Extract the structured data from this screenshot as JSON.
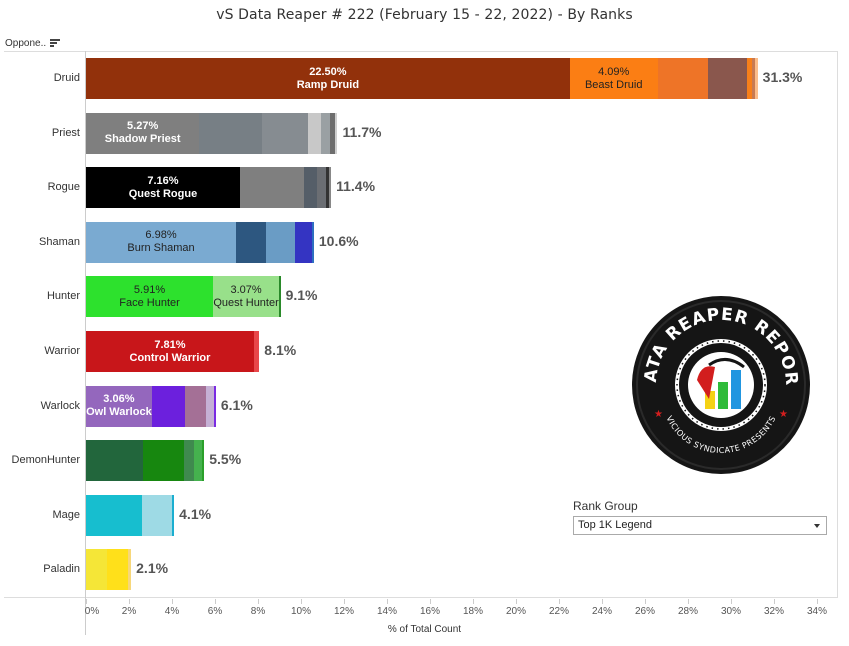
{
  "title": "vS Data Reaper #  222 (February 15 - 22, 2022) - By Ranks",
  "row_header": "Oppone..",
  "x_axis": {
    "label": "% of Total Count",
    "ticks": [
      "0%",
      "2%",
      "4%",
      "6%",
      "8%",
      "10%",
      "12%",
      "14%",
      "16%",
      "18%",
      "20%",
      "22%",
      "24%",
      "26%",
      "28%",
      "30%",
      "32%",
      "34%"
    ]
  },
  "filter": {
    "title": "Rank Group",
    "selected": "Top 1K Legend"
  },
  "logo": {
    "top_text": "DATA REAPER REPORT",
    "bottom_text": "VICIOUS SYNDICATE PRESENTS"
  },
  "rows": [
    {
      "label": "Druid",
      "total_label": "31.3%",
      "segments": [
        {
          "value": 22.5,
          "color": "#92310b",
          "text_color": "light",
          "label_pct": "22.50%",
          "label_name": "Ramp Druid"
        },
        {
          "value": 4.09,
          "color": "#fb7e14",
          "text_color": "dark",
          "label_pct": "4.09%",
          "label_name": "Beast Druid"
        },
        {
          "value": 2.33,
          "color": "#ee7427",
          "text_color": "dark",
          "label_pct": "",
          "label_name": ""
        },
        {
          "value": 1.81,
          "color": "#8a574d",
          "text_color": "light",
          "label_pct": "",
          "label_name": ""
        },
        {
          "value": 0.23,
          "color": "#f77f1a",
          "text_color": "dark",
          "label_pct": "",
          "label_name": ""
        },
        {
          "value": 0.14,
          "color": "#c87a52",
          "text_color": "dark",
          "label_pct": "",
          "label_name": ""
        },
        {
          "value": 0.14,
          "color": "#fbbc8a",
          "text_color": "dark",
          "label_pct": "",
          "label_name": ""
        }
      ]
    },
    {
      "label": "Priest",
      "total_label": "11.7%",
      "segments": [
        {
          "value": 5.27,
          "color": "#7f7f7f",
          "text_color": "light",
          "label_pct": "5.27%",
          "label_name": "Shadow Priest"
        },
        {
          "value": 2.93,
          "color": "#777f85",
          "text_color": "light",
          "label_pct": "",
          "label_name": ""
        },
        {
          "value": 2.14,
          "color": "#868c91",
          "text_color": "light",
          "label_pct": "",
          "label_name": ""
        },
        {
          "value": 0.6,
          "color": "#c8c8c8",
          "text_color": "dark",
          "label_pct": "",
          "label_name": ""
        },
        {
          "value": 0.42,
          "color": "#9aa0a3",
          "text_color": "dark",
          "label_pct": "",
          "label_name": ""
        },
        {
          "value": 0.23,
          "color": "#6e6e6e",
          "text_color": "light",
          "label_pct": "",
          "label_name": ""
        },
        {
          "value": 0.11,
          "color": "#cfcfcf",
          "text_color": "dark",
          "label_pct": "",
          "label_name": ""
        }
      ]
    },
    {
      "label": "Rogue",
      "total_label": "11.4%",
      "segments": [
        {
          "value": 7.16,
          "color": "#000000",
          "text_color": "light",
          "label_pct": "7.16%",
          "label_name": "Quest Rogue"
        },
        {
          "value": 2.98,
          "color": "#7f7f7f",
          "text_color": "light",
          "label_pct": "",
          "label_name": ""
        },
        {
          "value": 0.6,
          "color": "#555e68",
          "text_color": "light",
          "label_pct": "",
          "label_name": ""
        },
        {
          "value": 0.42,
          "color": "#6b6e73",
          "text_color": "light",
          "label_pct": "",
          "label_name": ""
        },
        {
          "value": 0.14,
          "color": "#333333",
          "text_color": "light",
          "label_pct": "",
          "label_name": ""
        },
        {
          "value": 0.1,
          "color": "#888888",
          "text_color": "light",
          "label_pct": "",
          "label_name": ""
        }
      ]
    },
    {
      "label": "Shaman",
      "total_label": "10.6%",
      "segments": [
        {
          "value": 6.98,
          "color": "#7aaad1",
          "text_color": "dark",
          "label_pct": "6.98%",
          "label_name": "Burn Shaman"
        },
        {
          "value": 1.4,
          "color": "#2d5780",
          "text_color": "light",
          "label_pct": "",
          "label_name": ""
        },
        {
          "value": 1.35,
          "color": "#6a9cc5",
          "text_color": "dark",
          "label_pct": "",
          "label_name": ""
        },
        {
          "value": 0.79,
          "color": "#3434c2",
          "text_color": "light",
          "label_pct": "",
          "label_name": ""
        },
        {
          "value": 0.08,
          "color": "#2d6fc0",
          "text_color": "light",
          "label_pct": "",
          "label_name": ""
        }
      ]
    },
    {
      "label": "Hunter",
      "total_label": "9.1%",
      "segments": [
        {
          "value": 5.91,
          "color": "#2de12d",
          "text_color": "dark",
          "label_pct": "5.91%",
          "label_name": "Face Hunter"
        },
        {
          "value": 3.07,
          "color": "#98e08a",
          "text_color": "dark",
          "label_pct": "3.07%",
          "label_name": "Quest Hunter"
        },
        {
          "value": 0.07,
          "color": "#2a8a2a",
          "text_color": "dark",
          "label_pct": "",
          "label_name": ""
        }
      ]
    },
    {
      "label": "Warrior",
      "total_label": "8.1%",
      "segments": [
        {
          "value": 7.81,
          "color": "#c8161a",
          "text_color": "light",
          "label_pct": "7.81%",
          "label_name": "Control Warrior"
        },
        {
          "value": 0.25,
          "color": "#e8474a",
          "text_color": "light",
          "label_pct": "",
          "label_name": ""
        }
      ]
    },
    {
      "label": "Warlock",
      "total_label": "6.1%",
      "segments": [
        {
          "value": 3.06,
          "color": "#9467bd",
          "text_color": "light",
          "label_pct": "3.06%",
          "label_name": "Owl Warlock"
        },
        {
          "value": 1.53,
          "color": "#6c20dd",
          "text_color": "light",
          "label_pct": "",
          "label_name": ""
        },
        {
          "value": 0.98,
          "color": "#a47096",
          "text_color": "light",
          "label_pct": "",
          "label_name": ""
        },
        {
          "value": 0.37,
          "color": "#c5b0d5",
          "text_color": "dark",
          "label_pct": "",
          "label_name": ""
        },
        {
          "value": 0.1,
          "color": "#7a2be2",
          "text_color": "light",
          "label_pct": "",
          "label_name": ""
        }
      ]
    },
    {
      "label": "DemonHunter",
      "total_label": "5.5%",
      "segments": [
        {
          "value": 2.65,
          "color": "#22663c",
          "text_color": "light",
          "label_pct": "",
          "label_name": ""
        },
        {
          "value": 1.91,
          "color": "#17870f",
          "text_color": "light",
          "label_pct": "",
          "label_name": ""
        },
        {
          "value": 0.47,
          "color": "#3f8a4e",
          "text_color": "light",
          "label_pct": "",
          "label_name": ""
        },
        {
          "value": 0.37,
          "color": "#45b24e",
          "text_color": "light",
          "label_pct": "",
          "label_name": ""
        },
        {
          "value": 0.1,
          "color": "#2aa02a",
          "text_color": "light",
          "label_pct": "",
          "label_name": ""
        }
      ]
    },
    {
      "label": "Mage",
      "total_label": "4.1%",
      "segments": [
        {
          "value": 2.6,
          "color": "#17becf",
          "text_color": "dark",
          "label_pct": "",
          "label_name": ""
        },
        {
          "value": 1.4,
          "color": "#9edae5",
          "text_color": "dark",
          "label_pct": "",
          "label_name": ""
        },
        {
          "value": 0.1,
          "color": "#1aaed0",
          "text_color": "dark",
          "label_pct": "",
          "label_name": ""
        }
      ]
    },
    {
      "label": "Paladin",
      "total_label": "2.1%",
      "segments": [
        {
          "value": 0.98,
          "color": "#f5e637",
          "text_color": "dark",
          "label_pct": "",
          "label_name": ""
        },
        {
          "value": 0.98,
          "color": "#ffe01a",
          "text_color": "dark",
          "label_pct": "",
          "label_name": ""
        },
        {
          "value": 0.14,
          "color": "#f7d77a",
          "text_color": "dark",
          "label_pct": "",
          "label_name": ""
        }
      ]
    }
  ],
  "chart_data": {
    "type": "bar",
    "orientation": "horizontal",
    "stacked": true,
    "title": "vS Data Reaper #  222 (February 15 - 22, 2022) - By Ranks",
    "xlabel": "% of Total Count",
    "ylabel": "Oppone..",
    "xlim": [
      0,
      34
    ],
    "x_ticks": [
      0,
      2,
      4,
      6,
      8,
      10,
      12,
      14,
      16,
      18,
      20,
      22,
      24,
      26,
      28,
      30,
      32,
      34
    ],
    "grid": false,
    "categories": [
      "Druid",
      "Priest",
      "Rogue",
      "Shaman",
      "Hunter",
      "Warrior",
      "Warlock",
      "DemonHunter",
      "Mage",
      "Paladin"
    ],
    "totals": [
      31.3,
      11.7,
      11.4,
      10.6,
      9.1,
      8.1,
      6.1,
      5.5,
      4.1,
      2.1
    ],
    "labeled_segments": [
      {
        "category": "Druid",
        "name": "Ramp Druid",
        "value": 22.5
      },
      {
        "category": "Druid",
        "name": "Beast Druid",
        "value": 4.09
      },
      {
        "category": "Priest",
        "name": "Shadow Priest",
        "value": 5.27
      },
      {
        "category": "Rogue",
        "name": "Quest Rogue",
        "value": 7.16
      },
      {
        "category": "Shaman",
        "name": "Burn Shaman",
        "value": 6.98
      },
      {
        "category": "Hunter",
        "name": "Face Hunter",
        "value": 5.91
      },
      {
        "category": "Hunter",
        "name": "Quest Hunter",
        "value": 3.07
      },
      {
        "category": "Warrior",
        "name": "Control Warrior",
        "value": 7.81
      },
      {
        "category": "Warlock",
        "name": "Owl Warlock",
        "value": 3.06
      }
    ],
    "filter": {
      "name": "Rank Group",
      "value": "Top 1K Legend"
    }
  }
}
